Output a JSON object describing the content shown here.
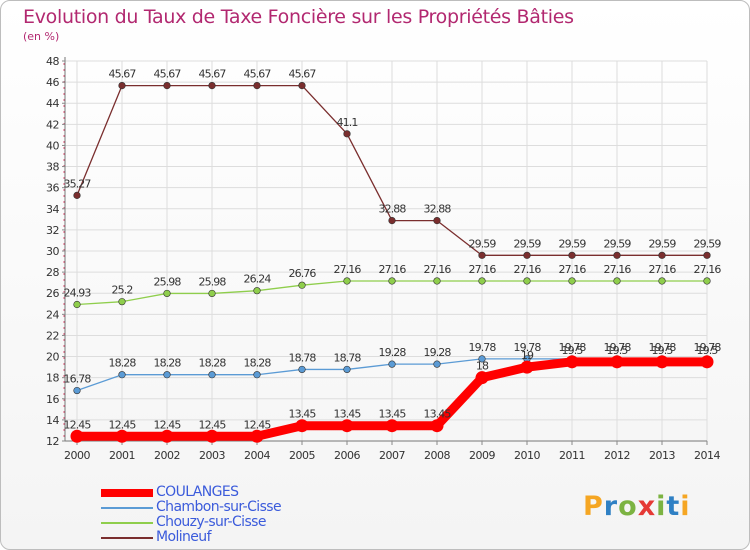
{
  "title": "Evolution du Taux de Taxe Foncière sur les Propriétés Bâties",
  "subtitle": "(en %)",
  "logo": {
    "letters": [
      "P",
      "r",
      "o",
      "x",
      "i",
      "t",
      "i"
    ],
    "colors": [
      "#f5a623",
      "#2f80c4",
      "#7cb342",
      "#e53935",
      "#7cb342",
      "#2f80c4",
      "#f5a623"
    ]
  },
  "chart_data": {
    "type": "line",
    "x": [
      "2000",
      "2001",
      "2002",
      "2003",
      "2004",
      "2005",
      "2006",
      "2007",
      "2008",
      "2009",
      "2010",
      "2011",
      "2012",
      "2013",
      "2014"
    ],
    "ylim": [
      12,
      48
    ],
    "yticks": [
      12,
      14,
      16,
      18,
      20,
      22,
      24,
      26,
      28,
      30,
      32,
      34,
      36,
      38,
      40,
      42,
      44,
      46,
      48
    ],
    "grid": true,
    "legend_position": "bottom-left",
    "series": [
      {
        "name": "COULANGES",
        "color": "#ff0000",
        "values": [
          12.45,
          12.45,
          12.45,
          12.45,
          12.45,
          13.45,
          13.45,
          13.45,
          13.45,
          18,
          19,
          19.5,
          19.5,
          19.5,
          19.5
        ],
        "labels": [
          "12.45",
          "12.45",
          "12.45",
          "12.45",
          "12.45",
          "13.45",
          "13.45",
          "13.45",
          "13.45",
          "18",
          "19",
          "19.5",
          "19.5",
          "19.5",
          "19.5"
        ]
      },
      {
        "name": "Chambon-sur-Cisse",
        "color": "#5b9bd5",
        "values": [
          16.78,
          18.28,
          18.28,
          18.28,
          18.28,
          18.78,
          18.78,
          19.28,
          19.28,
          19.78,
          19.78,
          19.78,
          19.78,
          19.78,
          19.78
        ],
        "labels": [
          "16.78",
          "18.28",
          "18.28",
          "18.28",
          "18.28",
          "18.78",
          "18.78",
          "19.28",
          "19.28",
          "19.78",
          "19.78",
          "19.78",
          "19.78",
          "19.78",
          "19.78"
        ]
      },
      {
        "name": "Chouzy-sur-Cisse",
        "color": "#8fce4c",
        "values": [
          24.93,
          25.2,
          25.98,
          25.98,
          26.24,
          26.76,
          27.16,
          27.16,
          27.16,
          27.16,
          27.16,
          27.16,
          27.16,
          27.16,
          27.16
        ],
        "labels": [
          "24.93",
          "25.2",
          "25.98",
          "25.98",
          "26.24",
          "26.76",
          "27.16",
          "27.16",
          "27.16",
          "27.16",
          "27.16",
          "27.16",
          "27.16",
          "27.16",
          "27.16"
        ]
      },
      {
        "name": "Molineuf",
        "color": "#7a2e2e",
        "values": [
          35.27,
          45.67,
          45.67,
          45.67,
          45.67,
          45.67,
          41.1,
          32.88,
          32.88,
          29.59,
          29.59,
          29.59,
          29.59,
          29.59,
          29.59
        ],
        "labels": [
          "35.27",
          "45.67",
          "45.67",
          "45.67",
          "45.67",
          "45.67",
          "41.1",
          "32.88",
          "32.88",
          "29.59",
          "29.59",
          "29.59",
          "29.59",
          "29.59",
          "29.59"
        ]
      }
    ]
  }
}
